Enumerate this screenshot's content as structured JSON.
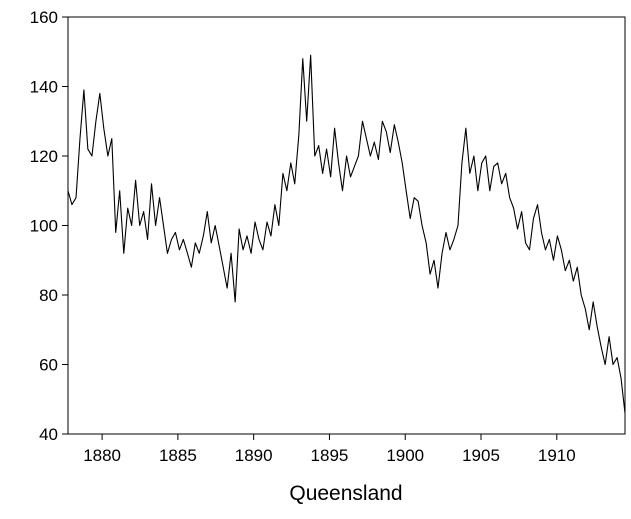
{
  "chart_data": {
    "type": "line",
    "xlabel": "Queensland",
    "x": [
      1877.75,
      1878.01,
      1878.28,
      1878.54,
      1878.8,
      1879.06,
      1879.33,
      1879.59,
      1879.85,
      1880.11,
      1880.38,
      1880.64,
      1880.9,
      1881.16,
      1881.43,
      1881.69,
      1881.95,
      1882.21,
      1882.48,
      1882.74,
      1883.0,
      1883.26,
      1883.53,
      1883.79,
      1884.05,
      1884.31,
      1884.58,
      1884.84,
      1885.1,
      1885.36,
      1885.63,
      1885.89,
      1886.15,
      1886.41,
      1886.68,
      1886.94,
      1887.2,
      1887.46,
      1887.73,
      1887.99,
      1888.25,
      1888.51,
      1888.78,
      1889.04,
      1889.3,
      1889.56,
      1889.83,
      1890.09,
      1890.35,
      1890.61,
      1890.88,
      1891.14,
      1891.4,
      1891.66,
      1891.93,
      1892.19,
      1892.45,
      1892.71,
      1892.98,
      1893.24,
      1893.5,
      1893.76,
      1894.03,
      1894.29,
      1894.55,
      1894.81,
      1895.08,
      1895.34,
      1895.6,
      1895.86,
      1896.13,
      1896.39,
      1896.65,
      1896.91,
      1897.18,
      1897.44,
      1897.7,
      1897.96,
      1898.23,
      1898.49,
      1898.75,
      1899.01,
      1899.28,
      1899.54,
      1899.8,
      1900.06,
      1900.33,
      1900.59,
      1900.85,
      1901.11,
      1901.38,
      1901.64,
      1901.9,
      1902.16,
      1902.43,
      1902.69,
      1902.95,
      1903.21,
      1903.48,
      1903.74,
      1904.0,
      1904.26,
      1904.53,
      1904.79,
      1905.05,
      1905.31,
      1905.58,
      1905.84,
      1906.1,
      1906.36,
      1906.63,
      1906.89,
      1907.15,
      1907.41,
      1907.68,
      1907.94,
      1908.2,
      1908.46,
      1908.73,
      1908.99,
      1909.25,
      1909.51,
      1909.78,
      1910.04,
      1910.3,
      1910.56,
      1910.83,
      1911.09,
      1911.35,
      1911.61,
      1911.88,
      1912.14,
      1912.4,
      1912.66,
      1912.93,
      1913.19,
      1913.45,
      1913.71,
      1913.98,
      1914.24,
      1914.5
    ],
    "series": [
      {
        "color": "#000000",
        "values": [
          110,
          106,
          108,
          125,
          139,
          122,
          120,
          130,
          138,
          128,
          120,
          125,
          98,
          110,
          92,
          105,
          100,
          113,
          100,
          104,
          96,
          112,
          100,
          108,
          100,
          92,
          96,
          98,
          93,
          96,
          92,
          88,
          95,
          92,
          97,
          104,
          95,
          100,
          94,
          88,
          82,
          92,
          78,
          99,
          93,
          97,
          92,
          101,
          96,
          93,
          101,
          97,
          106,
          100,
          115,
          110,
          118,
          112,
          126,
          148,
          130,
          149,
          120,
          123,
          115,
          122,
          114,
          128,
          118,
          110,
          120,
          114,
          117,
          120,
          130,
          125,
          120,
          124,
          119,
          130,
          127,
          121,
          129,
          124,
          118,
          110,
          102,
          108,
          107,
          100,
          95,
          86,
          90,
          82,
          92,
          98,
          93,
          96,
          100,
          118,
          128,
          115,
          120,
          110,
          118,
          120,
          110,
          117,
          118,
          112,
          115,
          108,
          105,
          99,
          104,
          95,
          93,
          102,
          106,
          98,
          93,
          96,
          90,
          97,
          93,
          87,
          90,
          84,
          88,
          80,
          76,
          70,
          78,
          71,
          65,
          60,
          68,
          60,
          62,
          56,
          46
        ]
      }
    ],
    "xlim": [
      1877.75,
      1914.5
    ],
    "xticks": [
      1880,
      1885,
      1890,
      1895,
      1900,
      1905,
      1910
    ],
    "ylim": [
      40,
      160
    ],
    "yticks": [
      40,
      60,
      80,
      100,
      120,
      140,
      160
    ]
  }
}
